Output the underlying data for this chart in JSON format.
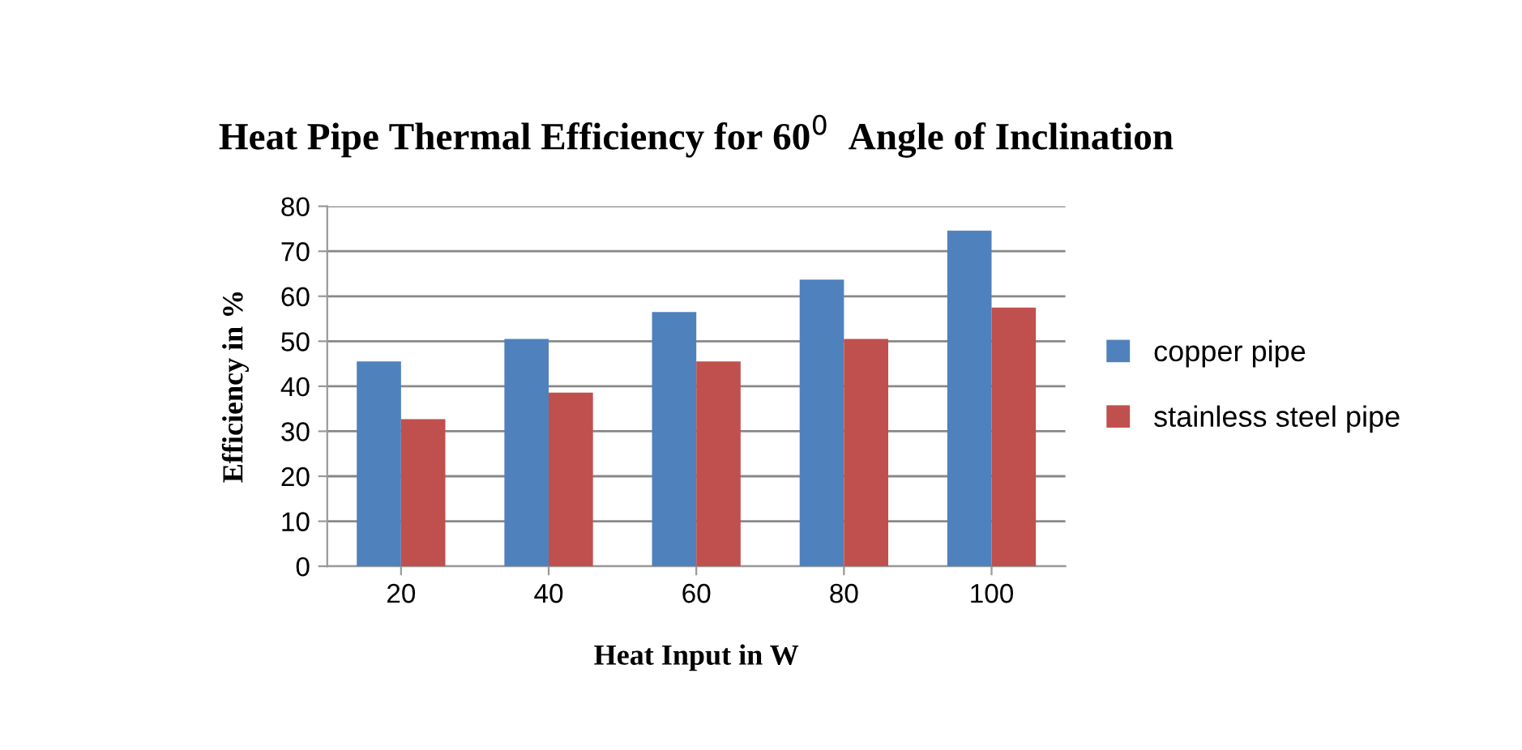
{
  "chart_data": {
    "type": "bar",
    "title": "Heat Pipe Thermal Efficiency for 60$^{0}$  Angle of Inclination",
    "xlabel": "Heat Input in W",
    "ylabel": "Efficiency in %",
    "categories": [
      "20",
      "40",
      "60",
      "80",
      "100"
    ],
    "series": [
      {
        "name": "copper pipe",
        "color": "#4f81bd",
        "values": [
          45.5,
          50.5,
          56.5,
          63.7,
          74.6
        ]
      },
      {
        "name": "stainless steel pipe",
        "color": "#c0504d",
        "values": [
          32.7,
          38.6,
          45.5,
          50.5,
          57.5
        ]
      }
    ],
    "ylim": [
      0,
      80
    ],
    "yticks": [
      0,
      10,
      20,
      30,
      40,
      50,
      60,
      70,
      80
    ],
    "grid": "y",
    "legend": "right"
  }
}
